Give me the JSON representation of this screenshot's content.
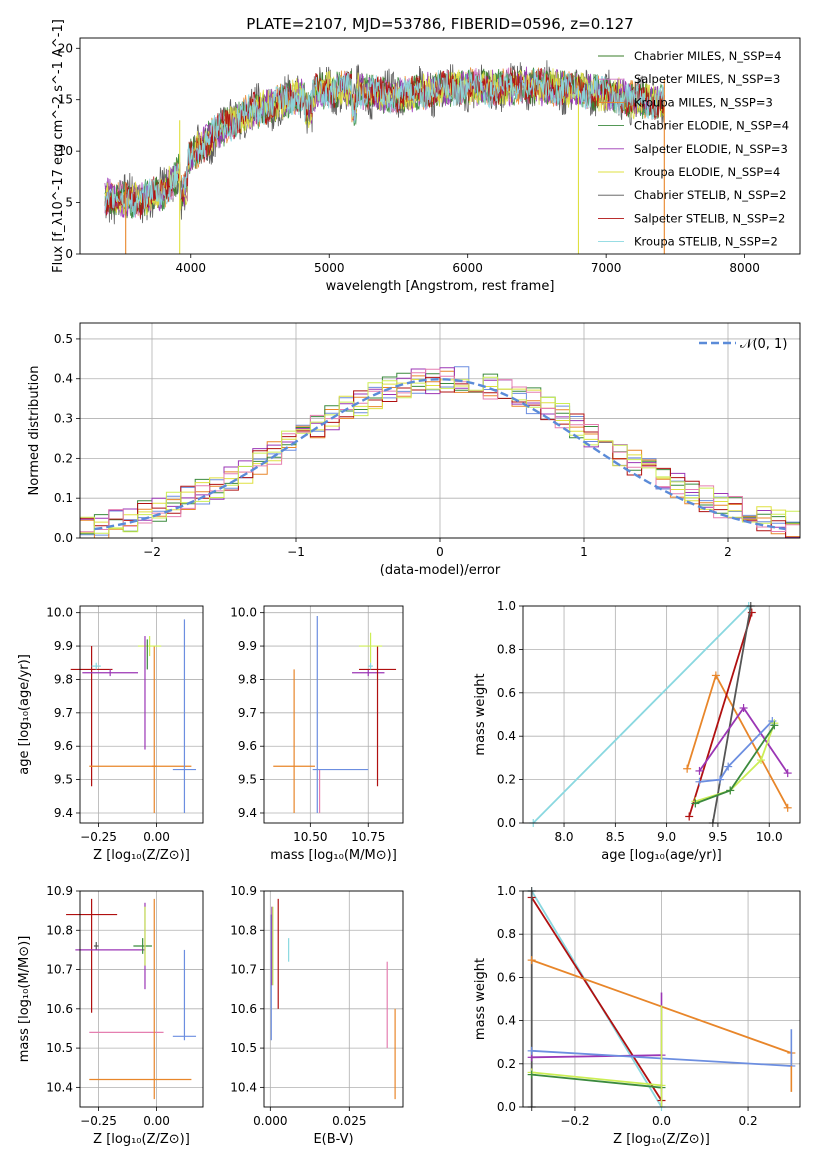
{
  "title": "PLATE=2107, MJD=53786, FIBERID=0596, z=0.127",
  "series_colors": [
    "#3a7d2a",
    "#cf74c4",
    "#e8862a",
    "#3b8a3e",
    "#9b36b5",
    "#dfe040",
    "#555555",
    "#b01010",
    "#8ad8e0"
  ],
  "chart_data": [
    {
      "type": "line",
      "xlabel": "wavelength [Angstrom, rest frame]",
      "ylabel": "Flux [f_λ10^-17 erg cm^-2 s^-1 A^-1]",
      "xlim": [
        3200,
        8400
      ],
      "ylim": [
        0,
        21
      ],
      "xticks": [
        4000,
        5000,
        6000,
        7000,
        8000
      ],
      "yticks": [
        0,
        5,
        10,
        15,
        20
      ],
      "grid": false,
      "legend_position": "top-right",
      "series": [
        {
          "name": "Chabrier MILES, N_SSP=4",
          "color": "#3a7d2a"
        },
        {
          "name": "Salpeter MILES, N_SSP=3",
          "color": "#cf74c4"
        },
        {
          "name": "Kroupa MILES, N_SSP=3",
          "color": "#e8862a"
        },
        {
          "name": "Chabrier ELODIE, N_SSP=4",
          "color": "#3b8a3e"
        },
        {
          "name": "Salpeter ELODIE, N_SSP=3",
          "color": "#9b36b5"
        },
        {
          "name": "Kroupa ELODIE, N_SSP=4",
          "color": "#dfe040"
        },
        {
          "name": "Chabrier STELIB, N_SSP=2",
          "color": "#555555"
        },
        {
          "name": "Salpeter STELIB, N_SSP=2",
          "color": "#b01010"
        },
        {
          "name": "Kroupa STELIB, N_SSP=2",
          "color": "#8ad8e0"
        }
      ],
      "continuum": {
        "x": [
          3400,
          3600,
          3800,
          4000,
          4200,
          4400,
          4600,
          4800,
          5000,
          5200,
          5400,
          5600,
          5800,
          6000,
          6200,
          6400,
          6600,
          6800,
          7000,
          7200,
          7400
        ],
        "y": [
          5.5,
          5.2,
          6.0,
          9.5,
          12.0,
          13.6,
          14.6,
          15.4,
          16.0,
          16.0,
          15.4,
          15.6,
          16.1,
          16.3,
          16.1,
          16.4,
          16.2,
          16.0,
          15.6,
          15.0,
          14.8
        ]
      }
    },
    {
      "type": "histogram",
      "xlabel": "(data-model)/error",
      "ylabel": "Normed distribution",
      "xlim": [
        -2.5,
        2.5
      ],
      "ylim": [
        0,
        0.54
      ],
      "xticks": [
        -2,
        -1,
        0,
        1,
        2
      ],
      "yticks": [
        0.0,
        0.1,
        0.2,
        0.3,
        0.4,
        0.5
      ],
      "grid": true,
      "legend": [
        "𝒩(0, 1)"
      ],
      "legend_position": "top-right",
      "bin_edges_step": 0.1,
      "bin_start": -2.5,
      "reference_curve": "normal(0,1)",
      "histogram_colors": [
        "#6c8ee0",
        "#e8862a",
        "#3b8a3e",
        "#9b36b5",
        "#dfe040",
        "#b01010",
        "#e57fb0",
        "#ccee55"
      ]
    },
    {
      "type": "errorbar",
      "xlabel": "Z [log₁₀(Z/Z⊙)]",
      "ylabel": "age  [log₁₀(age/yr)]",
      "xlim": [
        -0.33,
        0.2
      ],
      "ylim": [
        9.37,
        10.02
      ],
      "xticks": [
        -0.25,
        0.0
      ],
      "xtick_labels": [
        "−0.25",
        "0.00"
      ],
      "yticks": [
        9.4,
        9.5,
        9.6,
        9.7,
        9.8,
        9.9,
        10.0
      ],
      "grid": true,
      "points": [
        {
          "x": -0.28,
          "y": 9.83,
          "xerr": [
            0.09,
            0.09
          ],
          "yerr": [
            0.35,
            0.07
          ],
          "color": "#b01010"
        },
        {
          "x": -0.26,
          "y": 9.84,
          "xerr": [
            0.02,
            0.02
          ],
          "yerr": [
            0.01,
            0.01
          ],
          "color": "#8ad8e0"
        },
        {
          "x": -0.2,
          "y": 9.82,
          "xerr": [
            0.12,
            0.12
          ],
          "yerr": [
            0.01,
            0.01
          ],
          "color": "#9b36b5"
        },
        {
          "x": -0.07,
          "y": 9.54,
          "xerr": [
            0.22,
            0.22
          ],
          "yerr": [
            0.0,
            0.0
          ],
          "color": "#e8862a"
        },
        {
          "x": -0.01,
          "y": 9.54,
          "xerr": [
            0.01,
            0.01
          ],
          "yerr": [
            0.14,
            0.36
          ],
          "color": "#e8862a"
        },
        {
          "x": -0.03,
          "y": 9.9,
          "xerr": [
            0.05,
            0.05
          ],
          "yerr": [
            0.03,
            0.03
          ],
          "color": "#ccee55"
        },
        {
          "x": -0.05,
          "y": 9.89,
          "xerr": [
            0.0,
            0.0
          ],
          "yerr": [
            0.3,
            0.04
          ],
          "color": "#9b36b5"
        },
        {
          "x": 0.12,
          "y": 9.53,
          "xerr": [
            0.05,
            0.05
          ],
          "yerr": [
            0.13,
            0.45
          ],
          "color": "#6c8ee0"
        },
        {
          "x": -0.04,
          "y": 9.88,
          "xerr": [
            0.0,
            0.0
          ],
          "yerr": [
            0.05,
            0.04
          ],
          "color": "#3b8a3e"
        }
      ]
    },
    {
      "type": "errorbar",
      "xlabel": "mass [log₁₀(M/M⊙)]",
      "xlim": [
        10.3,
        10.9
      ],
      "ylim": [
        9.37,
        10.02
      ],
      "xticks": [
        10.5,
        10.75
      ],
      "xtick_labels": [
        "10.50",
        "10.75"
      ],
      "yticks": [
        9.4,
        9.5,
        9.6,
        9.7,
        9.8,
        9.9,
        10.0
      ],
      "grid": true,
      "points": [
        {
          "x": 10.43,
          "y": 9.54,
          "xerr": [
            0.09,
            0.09
          ],
          "yerr": [
            0.14,
            0.29
          ],
          "color": "#e8862a"
        },
        {
          "x": 10.53,
          "y": 9.53,
          "xerr": [
            0.0,
            0.0
          ],
          "yerr": [
            0.13,
            0.46
          ],
          "color": "#6c8ee0"
        },
        {
          "x": 10.54,
          "y": 9.53,
          "xerr": [
            0.0,
            0.0
          ],
          "yerr": [
            0.13,
            0.0
          ],
          "color": "#e57fb0"
        },
        {
          "x": 10.63,
          "y": 9.53,
          "xerr": [
            0.12,
            0.12
          ],
          "yerr": [
            0.0,
            0.0
          ],
          "color": "#6c8ee0"
        },
        {
          "x": 10.75,
          "y": 9.82,
          "xerr": [
            0.07,
            0.07
          ],
          "yerr": [
            0.01,
            0.01
          ],
          "color": "#9b36b5"
        },
        {
          "x": 10.79,
          "y": 9.83,
          "xerr": [
            0.08,
            0.08
          ],
          "yerr": [
            0.35,
            0.07
          ],
          "color": "#b01010"
        },
        {
          "x": 10.76,
          "y": 9.9,
          "xerr": [
            0.05,
            0.05
          ],
          "yerr": [
            0.05,
            0.04
          ],
          "color": "#ccee55"
        },
        {
          "x": 10.76,
          "y": 9.84,
          "xerr": [
            0.01,
            0.01
          ],
          "yerr": [
            0.01,
            0.01
          ],
          "color": "#8ad8e0"
        }
      ]
    },
    {
      "type": "line",
      "xlabel": "age  [log₁₀(age/yr)]",
      "ylabel": "mass weight",
      "xlim": [
        7.6,
        10.3
      ],
      "ylim": [
        0.0,
        1.0
      ],
      "xticks": [
        8.0,
        8.5,
        9.0,
        9.5,
        10.0
      ],
      "yticks": [
        0.0,
        0.2,
        0.4,
        0.6,
        0.8,
        1.0
      ],
      "grid": true,
      "series": [
        {
          "color": "#8ad8e0",
          "x": [
            7.7,
            9.8
          ],
          "y": [
            0.0,
            1.0
          ]
        },
        {
          "color": "#e8862a",
          "x": [
            9.2,
            9.48,
            10.18
          ],
          "y": [
            0.25,
            0.68,
            0.07
          ]
        },
        {
          "color": "#b01010",
          "x": [
            9.22,
            9.83
          ],
          "y": [
            0.03,
            0.97
          ]
        },
        {
          "color": "#555555",
          "x": [
            9.45,
            9.82
          ],
          "y": [
            0.0,
            1.0
          ]
        },
        {
          "color": "#9b36b5",
          "x": [
            9.32,
            9.75,
            10.18
          ],
          "y": [
            0.24,
            0.53,
            0.23
          ]
        },
        {
          "color": "#6c8ee0",
          "x": [
            9.32,
            9.52,
            9.6,
            10.03
          ],
          "y": [
            0.19,
            0.2,
            0.26,
            0.47
          ]
        },
        {
          "color": "#ccee55",
          "x": [
            9.28,
            9.62,
            9.92,
            10.05
          ],
          "y": [
            0.1,
            0.15,
            0.29,
            0.46
          ]
        },
        {
          "color": "#3b8a3e",
          "x": [
            9.28,
            9.62,
            10.05
          ],
          "y": [
            0.09,
            0.15,
            0.45
          ]
        }
      ]
    },
    {
      "type": "errorbar",
      "xlabel": "Z [log₁₀(Z/Z⊙)]",
      "ylabel": "mass [log₁₀(M/M⊙)]",
      "xlim": [
        -0.33,
        0.2
      ],
      "ylim": [
        10.35,
        10.9
      ],
      "xticks": [
        -0.25,
        0.0
      ],
      "xtick_labels": [
        "−0.25",
        "0.00"
      ],
      "yticks": [
        10.4,
        10.5,
        10.6,
        10.7,
        10.8,
        10.9
      ],
      "grid": true,
      "points": [
        {
          "x": -0.28,
          "y": 10.84,
          "xerr": [
            0.11,
            0.11
          ],
          "yerr": [
            0.25,
            0.04
          ],
          "color": "#b01010"
        },
        {
          "x": -0.26,
          "y": 10.76,
          "xerr": [
            0.01,
            0.01
          ],
          "yerr": [
            0.01,
            0.01
          ],
          "color": "#555555"
        },
        {
          "x": -0.2,
          "y": 10.75,
          "xerr": [
            0.15,
            0.15
          ],
          "yerr": [
            0.0,
            0.0
          ],
          "color": "#9b36b5"
        },
        {
          "x": -0.07,
          "y": 10.42,
          "xerr": [
            0.22,
            0.22
          ],
          "yerr": [
            0.0,
            0.0
          ],
          "color": "#e8862a"
        },
        {
          "x": -0.13,
          "y": 10.54,
          "xerr": [
            0.16,
            0.16
          ],
          "yerr": [
            0.0,
            0.0
          ],
          "color": "#e57fb0"
        },
        {
          "x": -0.01,
          "y": 10.42,
          "xerr": [
            0.0,
            0.0
          ],
          "yerr": [
            0.05,
            0.46
          ],
          "color": "#e8862a"
        },
        {
          "x": -0.06,
          "y": 10.76,
          "xerr": [
            0.04,
            0.04
          ],
          "yerr": [
            0.02,
            0.02
          ],
          "color": "#3b8a3e"
        },
        {
          "x": -0.05,
          "y": 10.75,
          "xerr": [
            0.0,
            0.0
          ],
          "yerr": [
            0.1,
            0.12
          ],
          "color": "#9b36b5"
        },
        {
          "x": 0.12,
          "y": 10.53,
          "xerr": [
            0.05,
            0.05
          ],
          "yerr": [
            0.01,
            0.22
          ],
          "color": "#6c8ee0"
        },
        {
          "x": -0.05,
          "y": 10.76,
          "xerr": [
            0.0,
            0.0
          ],
          "yerr": [
            0.05,
            0.1
          ],
          "color": "#ccee55"
        }
      ]
    },
    {
      "type": "errorbar",
      "xlabel": "E(B-V)",
      "xlim": [
        -0.002,
        0.042
      ],
      "ylim": [
        10.35,
        10.9
      ],
      "xticks": [
        0.0,
        0.025
      ],
      "xtick_labels": [
        "0.000",
        "0.025"
      ],
      "yticks": [
        10.4,
        10.5,
        10.6,
        10.7,
        10.8,
        10.9
      ],
      "grid": true,
      "points": [
        {
          "x": 0.0003,
          "y": 10.62,
          "xerr": [
            0.0,
            0.0
          ],
          "yerr": [
            0.1,
            0.22
          ],
          "color": "#6c8ee0"
        },
        {
          "x": 0.0005,
          "y": 10.78,
          "xerr": [
            0.0,
            0.0
          ],
          "yerr": [
            0.12,
            0.08
          ],
          "color": "#9b36b5"
        },
        {
          "x": 0.0008,
          "y": 10.76,
          "xerr": [
            0.0,
            0.0
          ],
          "yerr": [
            0.1,
            0.1
          ],
          "color": "#ccee55"
        },
        {
          "x": 0.0025,
          "y": 10.8,
          "xerr": [
            0.0,
            0.0
          ],
          "yerr": [
            0.2,
            0.08
          ],
          "color": "#b01010"
        },
        {
          "x": 0.0058,
          "y": 10.75,
          "xerr": [
            0.0,
            0.0
          ],
          "yerr": [
            0.03,
            0.03
          ],
          "color": "#8ad8e0"
        },
        {
          "x": 0.037,
          "y": 10.61,
          "xerr": [
            0.0,
            0.0
          ],
          "yerr": [
            0.11,
            0.11
          ],
          "color": "#e57fb0"
        },
        {
          "x": 0.0395,
          "y": 10.48,
          "xerr": [
            0.0,
            0.0
          ],
          "yerr": [
            0.11,
            0.12
          ],
          "color": "#e8862a"
        }
      ]
    },
    {
      "type": "line",
      "xlabel": "Z [log₁₀(Z/Z⊙)]",
      "ylabel": "mass weight",
      "xlim": [
        -0.32,
        0.32
      ],
      "ylim": [
        0.0,
        1.0
      ],
      "xticks": [
        -0.2,
        0.0,
        0.2
      ],
      "xtick_labels": [
        "−0.2",
        "0.0",
        "0.2"
      ],
      "yticks": [
        0.0,
        0.2,
        0.4,
        0.6,
        0.8,
        1.0
      ],
      "grid": true,
      "series": [
        {
          "color": "#8ad8e0",
          "x": [
            -0.3,
            -0.0
          ],
          "y": [
            1.0,
            0.0
          ]
        },
        {
          "color": "#b01010",
          "x": [
            -0.3,
            0.0
          ],
          "y": [
            0.97,
            0.03
          ]
        },
        {
          "color": "#555555",
          "x": [
            -0.3,
            -0.3
          ],
          "y": [
            0.0,
            1.0
          ]
        },
        {
          "color": "#e8862a",
          "x": [
            -0.3,
            0.3
          ],
          "y": [
            0.68,
            0.25
          ]
        },
        {
          "color": "#9b36b5",
          "x": [
            -0.3,
            0.0
          ],
          "y": [
            0.23,
            0.24
          ]
        },
        {
          "color": "#6c8ee0",
          "x": [
            -0.3,
            0.3
          ],
          "y": [
            0.26,
            0.19
          ]
        },
        {
          "color": "#ccee55",
          "x": [
            -0.3,
            0.0
          ],
          "y": [
            0.16,
            0.1
          ]
        },
        {
          "color": "#3b8a3e",
          "x": [
            -0.3,
            0.0
          ],
          "y": [
            0.15,
            0.09
          ]
        }
      ],
      "vbars": [
        {
          "color": "#9b36b5",
          "x": 0.0,
          "y0": 0.0,
          "y1": 0.53
        },
        {
          "color": "#ccee55",
          "x": 0.0,
          "y0": 0.0,
          "y1": 0.47
        },
        {
          "color": "#e8862a",
          "x": 0.3,
          "y0": 0.07,
          "y1": 0.25
        },
        {
          "color": "#6c8ee0",
          "x": 0.3,
          "y0": 0.19,
          "y1": 0.36
        }
      ]
    }
  ]
}
